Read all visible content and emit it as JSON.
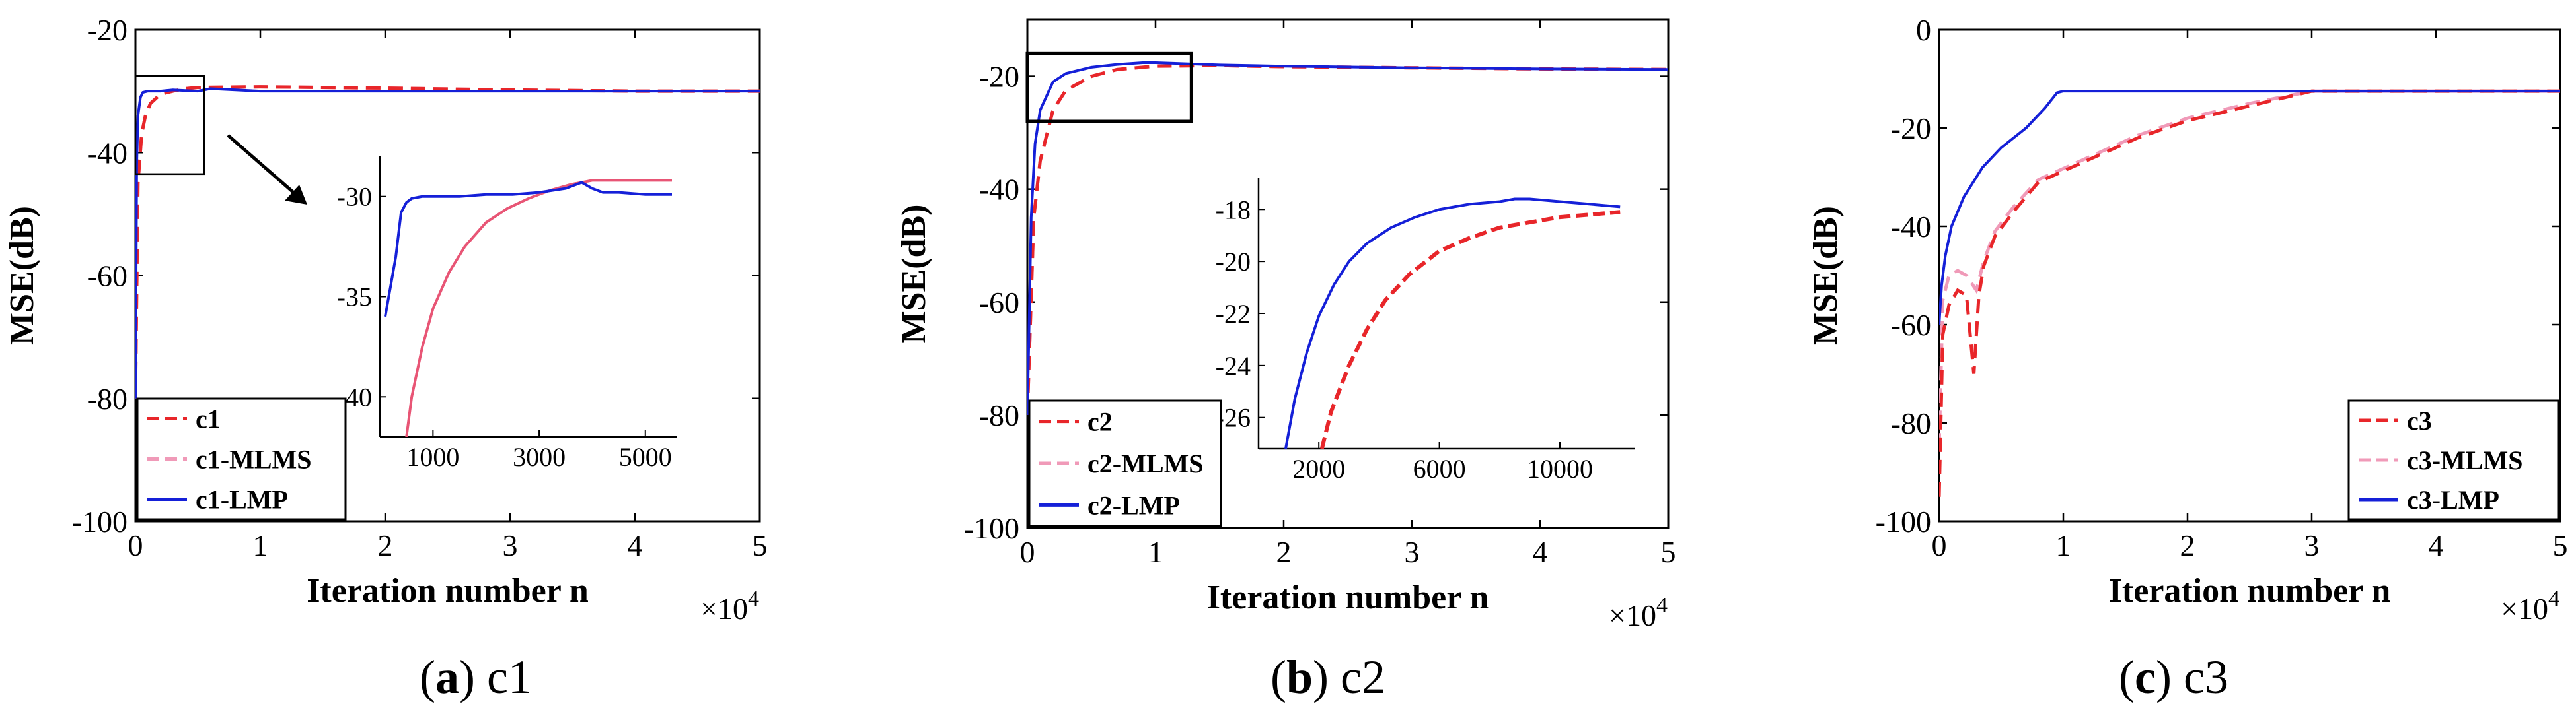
{
  "chart_data": [
    {
      "type": "line",
      "panel": "a",
      "caption_letter": "a",
      "caption_label": "c1",
      "xlabel": "Iteration number n",
      "ylabel": "MSE(dB)",
      "x_multiplier_base": "×10",
      "x_multiplier_exp": "4",
      "xlim": [
        0,
        5
      ],
      "ylim": [
        -100,
        -20
      ],
      "xticks": [
        0,
        1,
        2,
        3,
        4,
        5
      ],
      "xtick_labels": [
        "0",
        "1",
        "2",
        "3",
        "4",
        "5"
      ],
      "yticks": [
        -100,
        -80,
        -60,
        -40,
        -20
      ],
      "ytick_labels": [
        "-100",
        "-80",
        "-60",
        "-40",
        "-20"
      ],
      "legend_position": "bottom-left",
      "series": [
        {
          "name": "c1",
          "color": "#e8262a",
          "dash": "dashed",
          "x": [
            0,
            0.02,
            0.05,
            0.08,
            0.12,
            0.2,
            0.3,
            0.4,
            0.5,
            1,
            2,
            3,
            4,
            5
          ],
          "y": [
            -80,
            -45,
            -37,
            -34,
            -32,
            -30.5,
            -30,
            -29.6,
            -29.4,
            -29.3,
            -29.5,
            -29.8,
            -30,
            -30
          ]
        },
        {
          "name": "c1-MLMS",
          "color": "#f09ab8",
          "dash": "dashed",
          "x": [
            0,
            0.02,
            0.05,
            0.08,
            0.12,
            0.2,
            0.3,
            0.4,
            0.5,
            1,
            2,
            3,
            4,
            5
          ],
          "y": [
            -80,
            -45,
            -37,
            -34,
            -32,
            -30.5,
            -30,
            -29.6,
            -29.4,
            -29.3,
            -29.5,
            -29.8,
            -30,
            -30
          ]
        },
        {
          "name": "c1-LMP",
          "color": "#1520d8",
          "dash": "solid",
          "x": [
            0,
            0.01,
            0.02,
            0.04,
            0.06,
            0.1,
            0.2,
            0.3,
            0.4,
            0.5,
            0.6,
            1,
            2,
            3,
            4,
            5
          ],
          "y": [
            -80,
            -42,
            -34,
            -31,
            -30.2,
            -30,
            -30,
            -29.8,
            -29.9,
            -30,
            -29.6,
            -30,
            -30,
            -30,
            -30,
            -30
          ]
        }
      ],
      "inset": {
        "xlim": [
          0,
          5600
        ],
        "ylim": [
          -42,
          -28
        ],
        "xticks": [
          1000,
          3000,
          5000
        ],
        "xtick_labels": [
          "1000",
          "3000",
          "5000"
        ],
        "yticks": [
          -40,
          -35,
          -30
        ],
        "ytick_labels": [
          "-40",
          "-35",
          "-30"
        ],
        "series": [
          {
            "name": "c1-LMP",
            "color": "#1520d8",
            "dash": "solid",
            "x": [
              100,
              200,
              300,
              400,
              500,
              600,
              800,
              1000,
              1500,
              2000,
              2500,
              3000,
              3500,
              3800,
              4000,
              4200,
              4500,
              5000,
              5500
            ],
            "y": [
              -36,
              -34.5,
              -33,
              -30.8,
              -30.3,
              -30.1,
              -30.0,
              -30.0,
              -30.0,
              -29.9,
              -29.9,
              -29.8,
              -29.6,
              -29.3,
              -29.6,
              -29.8,
              -29.8,
              -29.9,
              -29.9
            ]
          },
          {
            "name": "c1-MLMS",
            "color": "#e85575",
            "dash": "solid",
            "x": [
              500,
              600,
              800,
              1000,
              1300,
              1600,
              2000,
              2400,
              2800,
              3200,
              3600,
              4000,
              4400,
              4800,
              5200,
              5500
            ],
            "y": [
              -42,
              -40.0,
              -37.5,
              -35.6,
              -33.8,
              -32.5,
              -31.3,
              -30.6,
              -30.1,
              -29.7,
              -29.4,
              -29.2,
              -29.2,
              -29.2,
              -29.2,
              -29.2
            ]
          }
        ]
      }
    },
    {
      "type": "line",
      "panel": "b",
      "caption_letter": "b",
      "caption_label": "c2",
      "xlabel": "Iteration number n",
      "ylabel": "MSE(dB)",
      "x_multiplier_base": "×10",
      "x_multiplier_exp": "4",
      "xlim": [
        0,
        5
      ],
      "ylim": [
        -100,
        -10
      ],
      "xticks": [
        0,
        1,
        2,
        3,
        4,
        5
      ],
      "xtick_labels": [
        "0",
        "1",
        "2",
        "3",
        "4",
        "5"
      ],
      "yticks": [
        -100,
        -80,
        -60,
        -40,
        -20
      ],
      "ytick_labels": [
        "-100",
        "-80",
        "-60",
        "-40",
        "-20"
      ],
      "legend_position": "bottom-left",
      "series": [
        {
          "name": "c2",
          "color": "#e8262a",
          "dash": "dashed",
          "x": [
            0,
            0.05,
            0.1,
            0.2,
            0.3,
            0.5,
            0.7,
            1,
            1.5,
            2,
            3,
            4,
            5
          ],
          "y": [
            -80,
            -45,
            -35,
            -26,
            -22.5,
            -20,
            -18.8,
            -18.2,
            -18.1,
            -18.3,
            -18.5,
            -18.7,
            -18.8
          ]
        },
        {
          "name": "c2-MLMS",
          "color": "#f09ab8",
          "dash": "dashed",
          "x": [
            0,
            0.05,
            0.1,
            0.2,
            0.3,
            0.5,
            0.7,
            1,
            1.5,
            2,
            3,
            4,
            5
          ],
          "y": [
            -80,
            -45,
            -35,
            -26,
            -22.5,
            -20,
            -18.8,
            -18.2,
            -18.1,
            -18.3,
            -18.5,
            -18.7,
            -18.8
          ]
        },
        {
          "name": "c2-LMP",
          "color": "#1520d8",
          "dash": "solid",
          "x": [
            0,
            0.03,
            0.06,
            0.1,
            0.2,
            0.3,
            0.5,
            0.7,
            0.9,
            1,
            1.5,
            2,
            3,
            4,
            5
          ],
          "y": [
            -80,
            -45,
            -32,
            -26,
            -21,
            -19.5,
            -18.4,
            -17.9,
            -17.6,
            -17.6,
            -18,
            -18.2,
            -18.5,
            -18.7,
            -18.8
          ]
        }
      ],
      "inset": {
        "xlim": [
          0,
          12500
        ],
        "ylim": [
          -27.2,
          -16.8
        ],
        "xticks": [
          2000,
          6000,
          10000
        ],
        "xtick_labels": [
          "2000",
          "6000",
          "10000"
        ],
        "yticks": [
          -26,
          -24,
          -22,
          -20,
          -18
        ],
        "ytick_labels": [
          "-26",
          "-24",
          "-22",
          "-20",
          "-18"
        ],
        "series": [
          {
            "name": "c2",
            "color": "#e8262a",
            "dash": "dashed",
            "x": [
              2100,
              2400,
              3000,
              3600,
              4200,
              5000,
              6000,
              7000,
              8000,
              9000,
              10000,
              11000,
              12000
            ],
            "y": [
              -27.2,
              -25.8,
              -24.0,
              -22.6,
              -21.5,
              -20.5,
              -19.6,
              -19.1,
              -18.7,
              -18.5,
              -18.3,
              -18.2,
              -18.1
            ]
          },
          {
            "name": "c2-LMP",
            "color": "#1520d8",
            "dash": "solid",
            "x": [
              900,
              1200,
              1600,
              2000,
              2500,
              3000,
              3600,
              4400,
              5200,
              6000,
              7000,
              8000,
              8500,
              9000,
              10000,
              11000,
              12000
            ],
            "y": [
              -27.2,
              -25.3,
              -23.5,
              -22.1,
              -20.9,
              -20.0,
              -19.3,
              -18.7,
              -18.3,
              -18.0,
              -17.8,
              -17.7,
              -17.6,
              -17.6,
              -17.7,
              -17.8,
              -17.9
            ]
          }
        ]
      }
    },
    {
      "type": "line",
      "panel": "c",
      "caption_letter": "c",
      "caption_label": "c3",
      "xlabel": "Iteration number n",
      "ylabel": "MSE(dB)",
      "x_multiplier_base": "×10",
      "x_multiplier_exp": "4",
      "xlim": [
        0,
        5
      ],
      "ylim": [
        -100,
        0
      ],
      "xticks": [
        0,
        1,
        2,
        3,
        4,
        5
      ],
      "xtick_labels": [
        "0",
        "1",
        "2",
        "3",
        "4",
        "5"
      ],
      "yticks": [
        -100,
        -80,
        -60,
        -40,
        -20,
        0
      ],
      "ytick_labels": [
        "-100",
        "-80",
        "-60",
        "-40",
        "-20",
        "0"
      ],
      "legend_position": "bottom-right",
      "series": [
        {
          "name": "c3",
          "color": "#e8262a",
          "dash": "dashed",
          "x": [
            0,
            0.03,
            0.08,
            0.15,
            0.22,
            0.28,
            0.32,
            0.36,
            0.45,
            0.6,
            0.8,
            1.2,
            1.6,
            2,
            2.5,
            3,
            3.5,
            4,
            5
          ],
          "y": [
            -95,
            -62,
            -56,
            -53,
            -54,
            -70,
            -54,
            -48,
            -42,
            -37,
            -31,
            -26.5,
            -22,
            -18.5,
            -15.5,
            -12.5,
            -12.5,
            -12.5,
            -12.5
          ]
        },
        {
          "name": "c3-MLMS",
          "color": "#f09ab8",
          "dash": "dashed",
          "x": [
            0,
            0.03,
            0.08,
            0.15,
            0.22,
            0.3,
            0.36,
            0.45,
            0.6,
            0.8,
            1.2,
            1.6,
            2,
            2.5,
            3,
            3.5,
            4,
            5
          ],
          "y": [
            -85,
            -55,
            -50,
            -49,
            -50,
            -53,
            -47,
            -41,
            -36,
            -30.5,
            -26,
            -21.5,
            -18,
            -15,
            -12.5,
            -12.5,
            -12.5,
            -12.5
          ]
        },
        {
          "name": "c3-LMP",
          "color": "#1520d8",
          "dash": "solid",
          "x": [
            0,
            0.02,
            0.05,
            0.1,
            0.2,
            0.35,
            0.5,
            0.7,
            0.85,
            0.95,
            1,
            2,
            3,
            4,
            5
          ],
          "y": [
            -60,
            -52,
            -46,
            -40,
            -34,
            -28,
            -24,
            -20,
            -16,
            -12.8,
            -12.5,
            -12.5,
            -12.5,
            -12.5,
            -12.5
          ]
        }
      ]
    }
  ]
}
